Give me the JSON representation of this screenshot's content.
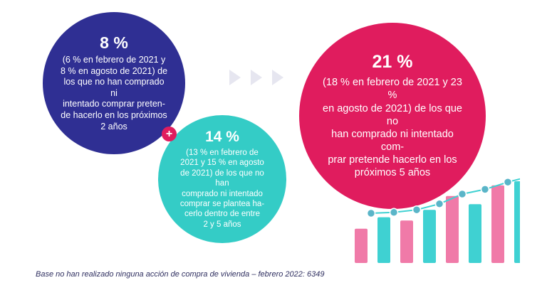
{
  "colors": {
    "blue": "#2f2f93",
    "teal": "#34ccc6",
    "pink": "#e01c5e",
    "bar_pink": "#f07aa8",
    "bar_teal": "#3fd1d2",
    "dot": "#5ab5c8"
  },
  "icons": {
    "plus": "+",
    "arrows": "triple-chevron-right-icon"
  },
  "circle_blue": {
    "value": "8 %",
    "lines": [
      "(6 % en febrero de 2021 y",
      "8 % en agosto de 2021) de",
      "los que no han comprado ni",
      "intentado comprar preten-",
      "de hacerlo en los próximos",
      "2 años"
    ]
  },
  "circle_teal": {
    "value": "14 %",
    "lines": [
      "(13 % en febrero de",
      "2021 y 15 % en agosto",
      "de 2021) de los que no han",
      "comprado ni intentado",
      "comprar se plantea ha-",
      "cerlo dentro de entre",
      "2 y 5 años"
    ]
  },
  "circle_pink": {
    "value": "21 %",
    "lines": [
      "(18 % en febrero de 2021 y 23 %",
      "en agosto de 2021) de los que no",
      "han comprado ni intentado com-",
      "prar pretende hacerlo en los",
      "próximos 5 años"
    ]
  },
  "footnote": "Base no han realizado ninguna acción de compra de vivienda – febrero 2022: 6349",
  "decor_chart": {
    "bars": [
      0.42,
      0.56,
      0.52,
      0.65,
      0.82,
      0.72,
      0.95,
      1.0
    ],
    "line": [
      0.0,
      0.02,
      0.08,
      0.22,
      0.45,
      0.56,
      0.73,
      0.87
    ]
  }
}
